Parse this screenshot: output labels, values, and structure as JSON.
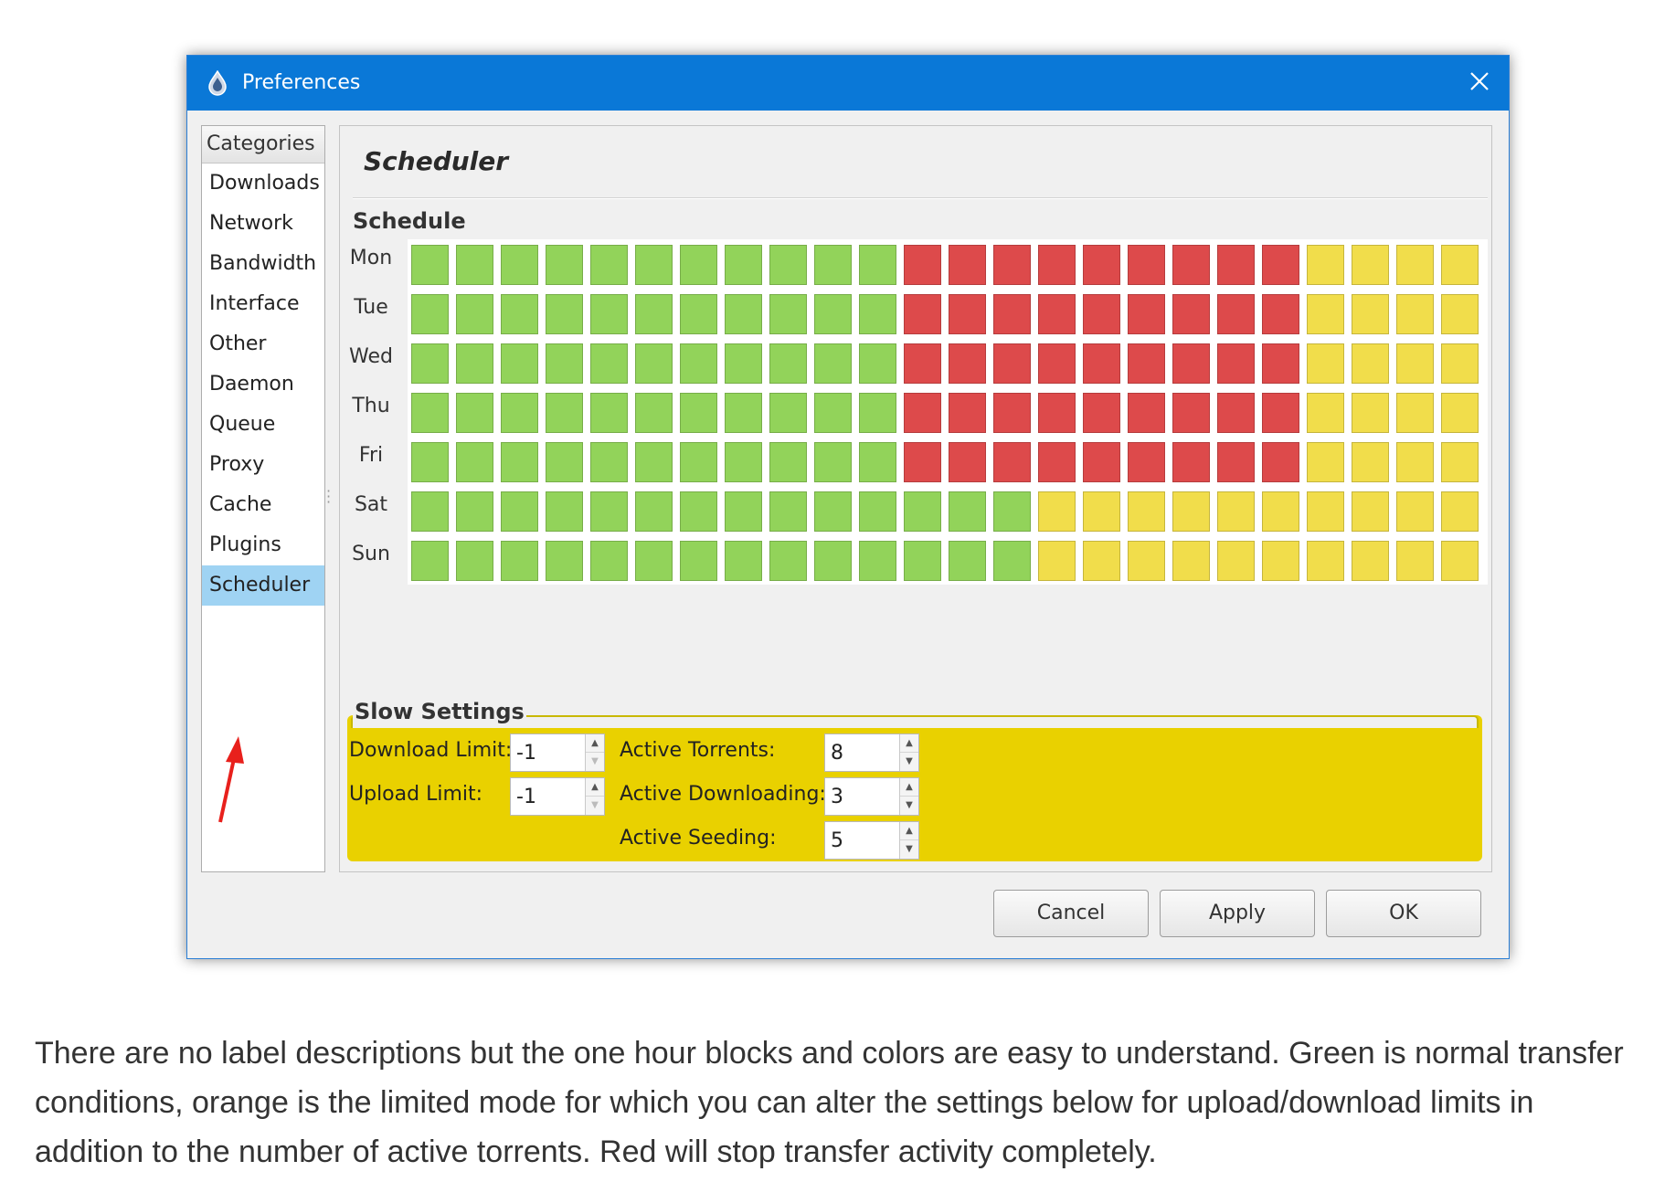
{
  "window": {
    "title": "Preferences"
  },
  "categories": {
    "header": "Categories",
    "items": [
      "Downloads",
      "Network",
      "Bandwidth",
      "Interface",
      "Other",
      "Daemon",
      "Queue",
      "Proxy",
      "Cache",
      "Plugins",
      "Scheduler"
    ],
    "selected": "Scheduler"
  },
  "page": {
    "title": "Scheduler",
    "schedule_label": "Schedule"
  },
  "schedule": {
    "days": [
      "Mon",
      "Tue",
      "Wed",
      "Thu",
      "Fri",
      "Sat",
      "Sun"
    ],
    "hours_per_day": 24,
    "colors": {
      "G": "#92d35a",
      "R": "#dd4a4b",
      "Y": "#f1dd4b"
    },
    "rows": [
      "GGGGGGGGGGGRRRRRRRRRYYYY",
      "GGGGGGGGGGGRRRRRRRRRYYYY",
      "GGGGGGGGGGGRRRRRRRRRYYYY",
      "GGGGGGGGGGGRRRRRRRRRYYYY",
      "GGGGGGGGGGGRRRRRRRRRYYYY",
      "GGGGGGGGGGGGGGYYYYYYYYYY",
      "GGGGGGGGGGGGGGYYYYYYYYYY"
    ]
  },
  "slow_settings": {
    "legend": "Slow Settings",
    "download_limit_label": "Download Limit:",
    "download_limit_value": "-1",
    "upload_limit_label": "Upload Limit:",
    "upload_limit_value": "-1",
    "active_torrents_label": "Active Torrents:",
    "active_torrents_value": "8",
    "active_downloading_label": "Active Downloading:",
    "active_downloading_value": "3",
    "active_seeding_label": "Active Seeding:",
    "active_seeding_value": "5"
  },
  "buttons": {
    "cancel": "Cancel",
    "apply": "Apply",
    "ok": "OK"
  },
  "caption": {
    "text": "There are no label descriptions but the one hour blocks and colors are easy to understand. Green is normal transfer conditions, orange is the limited mode for which you can alter the settings below for upload/download limits in addition to the number of active torrents. Red will stop transfer activity completely."
  },
  "accent_colors": {
    "titlebar": "#0a78d7",
    "slow_settings_bg": "#e9d100",
    "selected_category": "#9fd3f3",
    "annotation_arrow": "#e8201c"
  }
}
